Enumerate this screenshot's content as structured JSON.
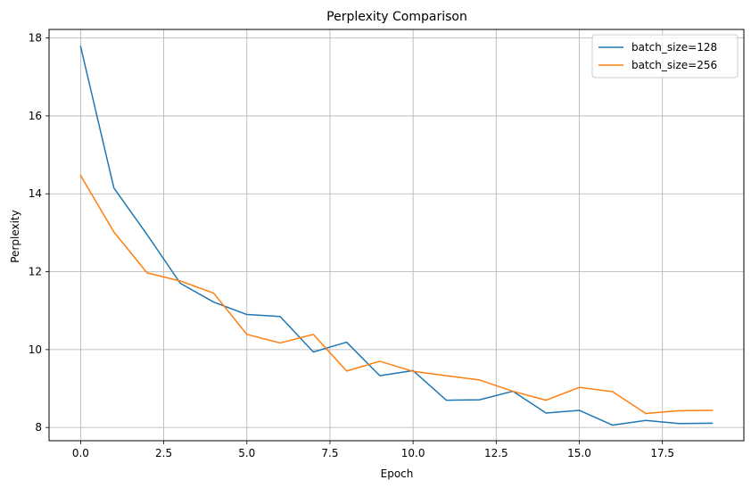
{
  "chart_data": {
    "type": "line",
    "title": "Perplexity Comparison",
    "xlabel": "Epoch",
    "ylabel": "Perplexity",
    "xlim": [
      -0.95,
      19.95
    ],
    "ylim": [
      7.66,
      18.22
    ],
    "xticks": [
      0.0,
      2.5,
      5.0,
      7.5,
      10.0,
      12.5,
      15.0,
      17.5
    ],
    "xtick_labels": [
      "0.0",
      "2.5",
      "5.0",
      "7.5",
      "10.0",
      "12.5",
      "15.0",
      "17.5"
    ],
    "yticks": [
      8,
      10,
      12,
      14,
      16,
      18
    ],
    "ytick_labels": [
      "8",
      "10",
      "12",
      "14",
      "16",
      "18"
    ],
    "grid": true,
    "legend_position": "top-right",
    "x": [
      0,
      1,
      2,
      3,
      4,
      5,
      6,
      7,
      8,
      9,
      10,
      11,
      12,
      13,
      14,
      15,
      16,
      17,
      18,
      19
    ],
    "series": [
      {
        "name": "batch_size=128",
        "color": "#1f77b4",
        "values": [
          17.78,
          14.15,
          12.95,
          11.7,
          11.22,
          10.9,
          10.85,
          9.94,
          10.19,
          9.33,
          9.46,
          8.7,
          8.71,
          8.93,
          8.37,
          8.44,
          8.06,
          8.18,
          8.1,
          8.11
        ]
      },
      {
        "name": "batch_size=256",
        "color": "#ff7f0e",
        "values": [
          14.47,
          13.02,
          11.97,
          11.76,
          11.45,
          10.39,
          10.17,
          10.39,
          9.45,
          9.7,
          9.44,
          9.33,
          9.22,
          8.93,
          8.7,
          9.03,
          8.92,
          8.36,
          8.43,
          8.44
        ]
      }
    ]
  }
}
